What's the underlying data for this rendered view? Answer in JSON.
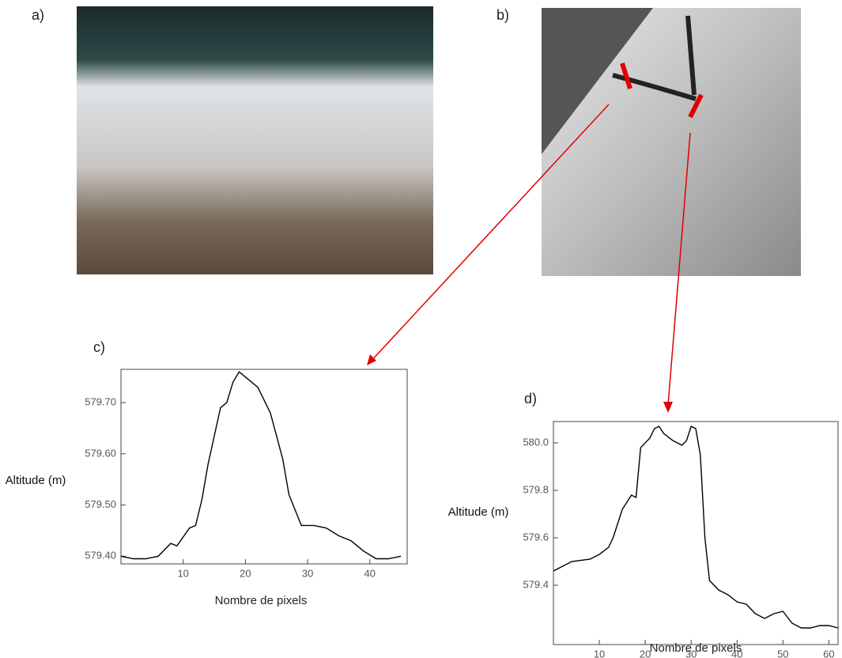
{
  "images": [
    {
      "label": "a)"
    },
    {
      "label": "b)"
    }
  ],
  "chart_data": [
    {
      "type": "line",
      "title": "c)",
      "xlabel": "Nombre de pixels",
      "ylabel": "Altitude (m)",
      "color": "#000000",
      "x": [
        0,
        2,
        4,
        6,
        8,
        9,
        11,
        12,
        13,
        14,
        16,
        17,
        18,
        19,
        20,
        22,
        24,
        26,
        27,
        29,
        31,
        33,
        35,
        37,
        39,
        41,
        43,
        45
      ],
      "values": [
        579.4,
        579.395,
        579.395,
        579.4,
        579.425,
        579.42,
        579.455,
        579.46,
        579.51,
        579.58,
        579.69,
        579.7,
        579.74,
        579.76,
        579.75,
        579.73,
        579.68,
        579.59,
        579.52,
        579.46,
        579.46,
        579.455,
        579.44,
        579.43,
        579.41,
        579.395,
        579.395,
        579.4
      ],
      "xlim": [
        0,
        46
      ],
      "ylim": [
        579.385,
        579.765
      ],
      "xticks": [
        10,
        20,
        30,
        40
      ],
      "yticks": [
        {
          "value": 579.4,
          "label": "579.40"
        },
        {
          "value": 579.5,
          "label": "579.50"
        },
        {
          "value": 579.6,
          "label": "579.60"
        },
        {
          "value": 579.7,
          "label": "579.70"
        }
      ]
    },
    {
      "type": "line",
      "title": "d)",
      "xlabel": "Nombre de pixels",
      "ylabel": "Altitude (m)",
      "color": "#000000",
      "x": [
        0,
        2,
        4,
        8,
        10,
        12,
        13,
        15,
        17,
        18,
        19,
        21,
        22,
        23,
        24,
        26,
        28,
        29,
        30,
        31,
        32,
        33,
        34,
        36,
        38,
        40,
        42,
        44,
        46,
        48,
        50,
        52,
        54,
        56,
        58,
        60,
        62
      ],
      "values": [
        579.46,
        579.48,
        579.5,
        579.51,
        579.53,
        579.56,
        579.6,
        579.72,
        579.78,
        579.77,
        579.98,
        580.02,
        580.06,
        580.07,
        580.04,
        580.01,
        579.99,
        580.01,
        580.07,
        580.06,
        579.95,
        579.6,
        579.42,
        579.38,
        579.36,
        579.33,
        579.32,
        579.28,
        579.26,
        579.28,
        579.29,
        579.24,
        579.22,
        579.22,
        579.23,
        579.23,
        579.22
      ],
      "xlim": [
        0,
        62
      ],
      "ylim": [
        579.15,
        580.09
      ],
      "xticks": [
        10,
        20,
        30,
        40,
        50,
        60
      ],
      "yticks": [
        579.4,
        579.6,
        579.8,
        {
          "value": 580,
          "label": "580.0"
        }
      ]
    }
  ]
}
